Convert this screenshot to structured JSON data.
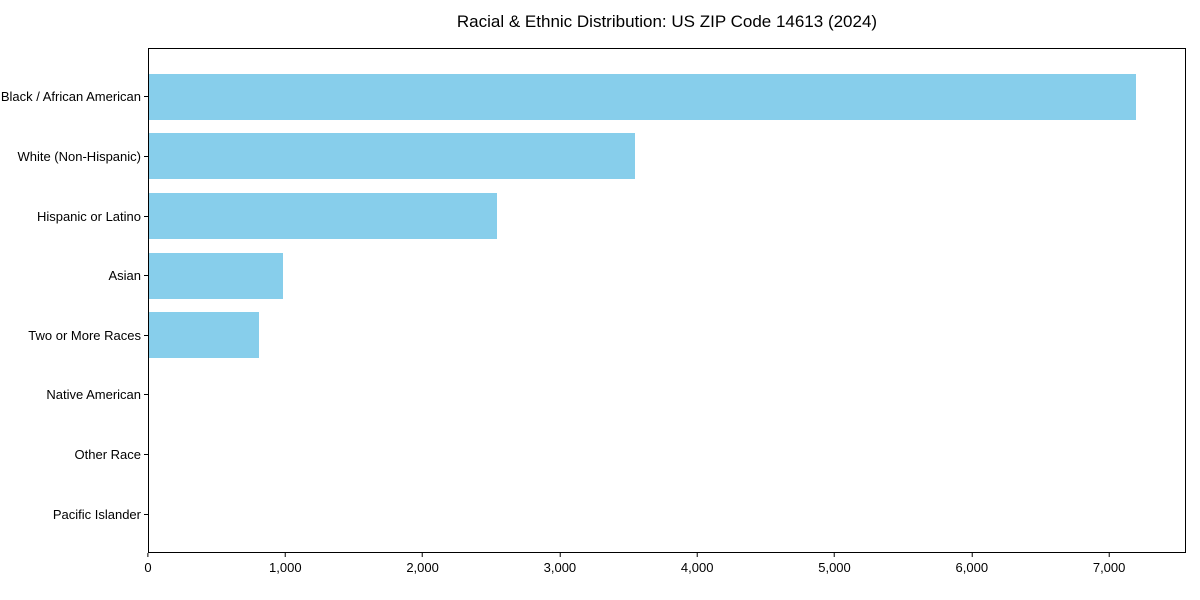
{
  "chart_data": {
    "type": "bar",
    "orientation": "horizontal",
    "title": "Racial & Ethnic Distribution: US ZIP Code 14613 (2024)",
    "categories": [
      "Black / African American",
      "White (Non-Hispanic)",
      "Hispanic or Latino",
      "Asian",
      "Two or More Races",
      "Native American",
      "Other Race",
      "Pacific Islander"
    ],
    "values": [
      7200,
      3550,
      2540,
      980,
      800,
      0,
      0,
      0
    ],
    "xlabel": "",
    "ylabel": "",
    "xlim": [
      0,
      7560
    ],
    "x_ticks": [
      0,
      1000,
      2000,
      3000,
      4000,
      5000,
      6000,
      7000
    ],
    "x_tick_labels": [
      "0",
      "1,000",
      "2,000",
      "3,000",
      "4,000",
      "5,000",
      "6,000",
      "7,000"
    ],
    "bar_color": "#87CEEB",
    "grid": false,
    "legend": false,
    "background_color": "#ffffff",
    "axis_color": "#000000",
    "text_color": "#000000"
  }
}
